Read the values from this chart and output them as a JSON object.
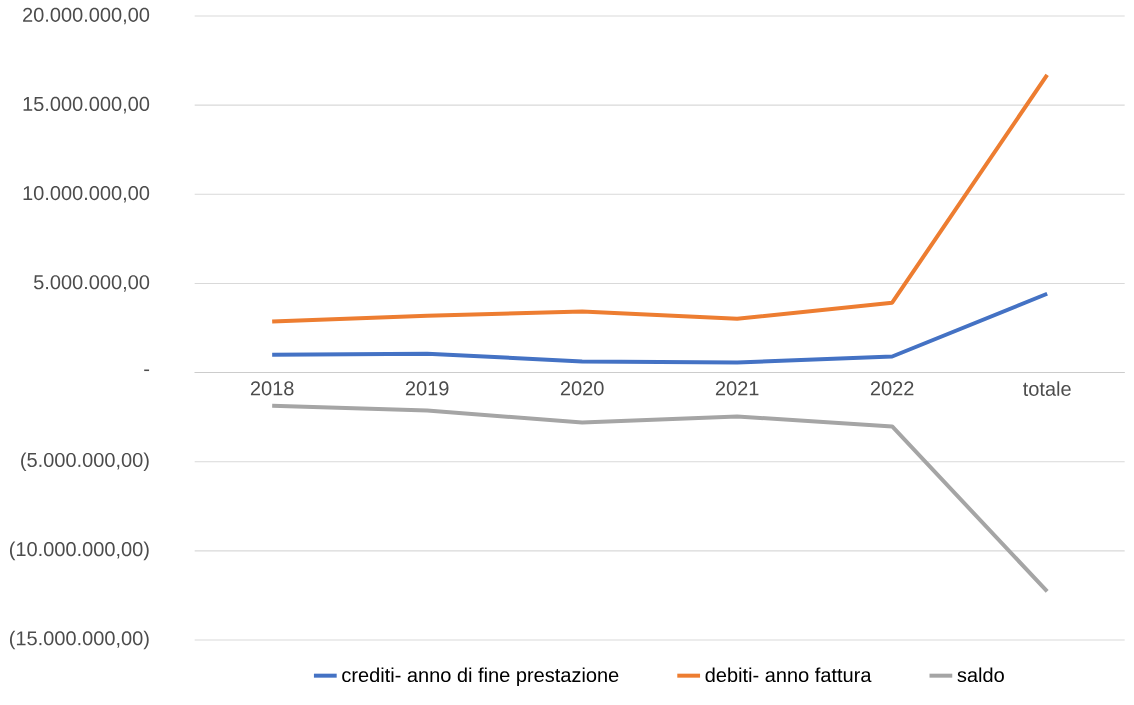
{
  "chart_data": {
    "type": "line",
    "categories": [
      "2018",
      "2019",
      "2020",
      "2021",
      "2022",
      "totale"
    ],
    "series": [
      {
        "name": "crediti- anno di fine prestazione",
        "color": "#4472c4",
        "values": [
          1000000,
          1060000,
          620000,
          560000,
          900000,
          4420000
        ]
      },
      {
        "name": "debiti- anno fattura",
        "color": "#ed7d31",
        "values": [
          2860000,
          3190000,
          3420000,
          3020000,
          3920000,
          16700000
        ]
      },
      {
        "name": "saldo",
        "color": "#a5a5a5",
        "values": [
          -1860000,
          -2130000,
          -2800000,
          -2460000,
          -3020000,
          -12280000
        ]
      }
    ],
    "ylim": [
      -15000000,
      20000000
    ],
    "yticks": [
      {
        "value": -15000000,
        "label": "(15.000.000,00)"
      },
      {
        "value": -10000000,
        "label": "(10.000.000,00)"
      },
      {
        "value": -5000000,
        "label": "(5.000.000,00)"
      },
      {
        "value": 0,
        "label": "-"
      },
      {
        "value": 5000000,
        "label": "5.000.000,00"
      },
      {
        "value": 10000000,
        "label": "10.000.000,00"
      },
      {
        "value": 15000000,
        "label": "15.000.000,00"
      },
      {
        "value": 20000000,
        "label": "20.000.000,00"
      }
    ],
    "grid": "y",
    "legend": "bottom"
  }
}
